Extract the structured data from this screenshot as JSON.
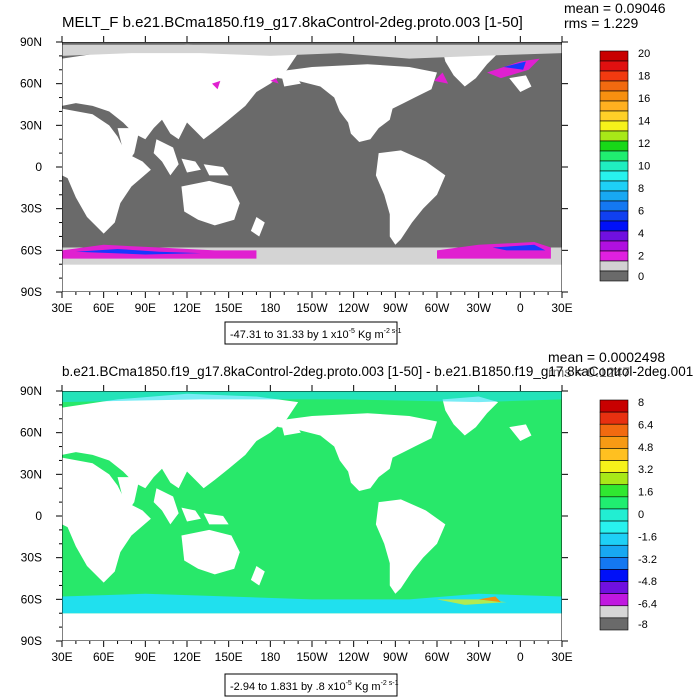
{
  "colors": {
    "land": "#ffffff",
    "ocean_gray": "#6a6a6a",
    "sea_ice_light": "#d4d4d4",
    "melt_magenta": "#e020d0",
    "melt_purple": "#9a10d8",
    "melt_blue": "#1838ff",
    "diff_green": "#28e86a",
    "diff_cyan": "#20e0ee",
    "diff_yellow": "#f0ee10",
    "diff_orange": "#f09010"
  },
  "chart_data": [
    {
      "type": "heatmap",
      "title": "MELT_F b.e21.BCma1850.f19_g17.8kaControl-2deg.proto.003 [1-50]",
      "stats": {
        "mean": "mean = 0.09046",
        "rms": "rms = 1.229"
      },
      "range_label": "-47.31 to 31.33 by 1 x10",
      "range_exp": "-5",
      "range_units": " Kg m",
      "range_units_exp": "-2",
      "range_units_sup2": " s",
      "range_units_exp2": "-1",
      "x_ticks": [
        "30E",
        "60E",
        "90E",
        "120E",
        "150E",
        "180",
        "150W",
        "120W",
        "90W",
        "60W",
        "30W",
        "0",
        "30E"
      ],
      "y_ticks": [
        "90N",
        "60N",
        "30N",
        "0",
        "30S",
        "60S",
        "90S"
      ],
      "xlim": [
        30,
        390
      ],
      "ylim": [
        -90,
        90
      ],
      "colorbar": {
        "labels": [
          "20",
          "18",
          "16",
          "14",
          "12",
          "10",
          "8",
          "6",
          "4",
          "2",
          "0"
        ],
        "colors": [
          "#c80000",
          "#e01010",
          "#f23a10",
          "#f26a10",
          "#f79010",
          "#ffb020",
          "#ffd028",
          "#f6f21a",
          "#a8e818",
          "#18d818",
          "#20ee70",
          "#20eec0",
          "#28f2ee",
          "#1ed0f6",
          "#18a8f2",
          "#1478f2",
          "#1040f0",
          "#0010f8",
          "#7010e0",
          "#b010e0",
          "#e020e0",
          "#d2d2d2",
          "#6a6a6a"
        ]
      }
    },
    {
      "type": "heatmap",
      "title": "b.e21.BCma1850.f19_g17.8kaControl-2deg.proto.003 [1-50] - b.e21.B1850.f19_g17.8kaControl-2deg.001",
      "stats": {
        "mean": "mean = 0.0002498",
        "rms": "rms = 0.1247"
      },
      "range_label": "-2.94 to 1.831 by .8 x10",
      "range_exp": "-5",
      "range_units": " Kg m",
      "range_units_exp": "-2",
      "range_units_sup2": " s",
      "range_units_exp2": "-1",
      "x_ticks": [
        "30E",
        "60E",
        "90E",
        "120E",
        "150E",
        "180",
        "150W",
        "120W",
        "90W",
        "60W",
        "30W",
        "0",
        "30E"
      ],
      "y_ticks": [
        "90N",
        "60N",
        "30N",
        "0",
        "30S",
        "60S",
        "90S"
      ],
      "xlim": [
        30,
        390
      ],
      "ylim": [
        -90,
        90
      ],
      "colorbar": {
        "labels": [
          "8",
          "6.4",
          "4.8",
          "3.2",
          "1.6",
          "0",
          "-1.6",
          "-3.2",
          "-4.8",
          "-6.4",
          "-8"
        ],
        "colors": [
          "#c80000",
          "#e83010",
          "#f26a10",
          "#f79a14",
          "#ffc020",
          "#f6f21a",
          "#a8e818",
          "#30e830",
          "#20ee70",
          "#22eed2",
          "#28f2ee",
          "#1ed0f6",
          "#18a8f2",
          "#1478f2",
          "#0010f8",
          "#7010e0",
          "#c018e0",
          "#d6d6d6",
          "#6a6a6a"
        ]
      }
    }
  ]
}
